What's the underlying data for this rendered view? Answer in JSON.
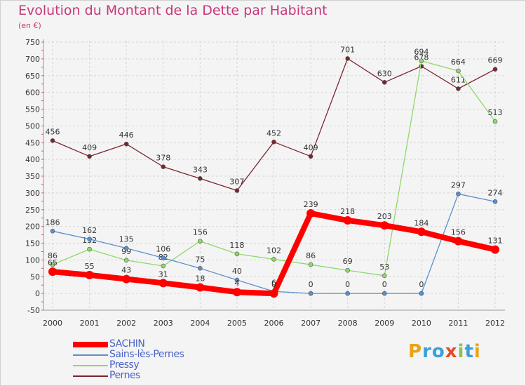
{
  "header": {
    "title": "Evolution du Montant de la Dette par Habitant",
    "unit": "(en €)"
  },
  "logo": {
    "letters": [
      "P",
      "r",
      "o",
      "x",
      "i",
      "t",
      "i"
    ],
    "colors": [
      "#e8a317",
      "#3aa0d8",
      "#3aa0d8",
      "#e34b2a",
      "#8bc34a",
      "#3aa0d8",
      "#e8a317"
    ]
  },
  "chart_data": {
    "type": "line",
    "title": "Evolution du Montant de la Dette par Habitant",
    "ylabel": "(en €)",
    "xlabel": "",
    "x": [
      "2000",
      "2001",
      "2002",
      "2003",
      "2004",
      "2005",
      "2006",
      "2007",
      "2008",
      "2009",
      "2010",
      "2011",
      "2012"
    ],
    "ylim": [
      -50,
      750
    ],
    "yticks": [
      -50,
      0,
      50,
      100,
      150,
      200,
      250,
      300,
      350,
      400,
      450,
      500,
      550,
      600,
      650,
      700,
      750
    ],
    "grid": true,
    "legend_position": "bottom-left",
    "series": [
      {
        "name": "SACHIN",
        "color": "#ff0000",
        "values": [
          65,
          55,
          43,
          31,
          18,
          4,
          0,
          239,
          218,
          203,
          184,
          156,
          131
        ],
        "labels": [
          "65",
          "55",
          "43",
          "31",
          "18",
          "4",
          "0",
          "239",
          "218",
          "203",
          "184",
          "156",
          "131"
        ]
      },
      {
        "name": "Sains-lès-Pernes",
        "color": "#5b8fc9",
        "values": [
          186,
          162,
          135,
          106,
          75,
          40,
          6,
          0,
          0,
          0,
          0,
          297,
          274
        ],
        "labels": [
          "186",
          "162",
          "135",
          "106",
          "75",
          "40",
          "6",
          "0",
          "0",
          "0",
          "0",
          "297",
          "274"
        ]
      },
      {
        "name": "Pressy",
        "color": "#8fd86b",
        "values": [
          86,
          132,
          99,
          82,
          156,
          118,
          102,
          86,
          69,
          53,
          694,
          664,
          513
        ],
        "labels": [
          "86",
          "132",
          "99",
          "82",
          "156",
          "118",
          "102",
          "86",
          "69",
          "53",
          "694",
          "664",
          "513"
        ]
      },
      {
        "name": "Pernes",
        "color": "#7a2530",
        "values": [
          456,
          409,
          446,
          378,
          343,
          307,
          452,
          409,
          701,
          630,
          678,
          611,
          669
        ],
        "labels": [
          "456",
          "409",
          "446",
          "378",
          "343",
          "307",
          "452",
          "409",
          "701",
          "630",
          "678",
          "611",
          "669"
        ]
      }
    ]
  }
}
